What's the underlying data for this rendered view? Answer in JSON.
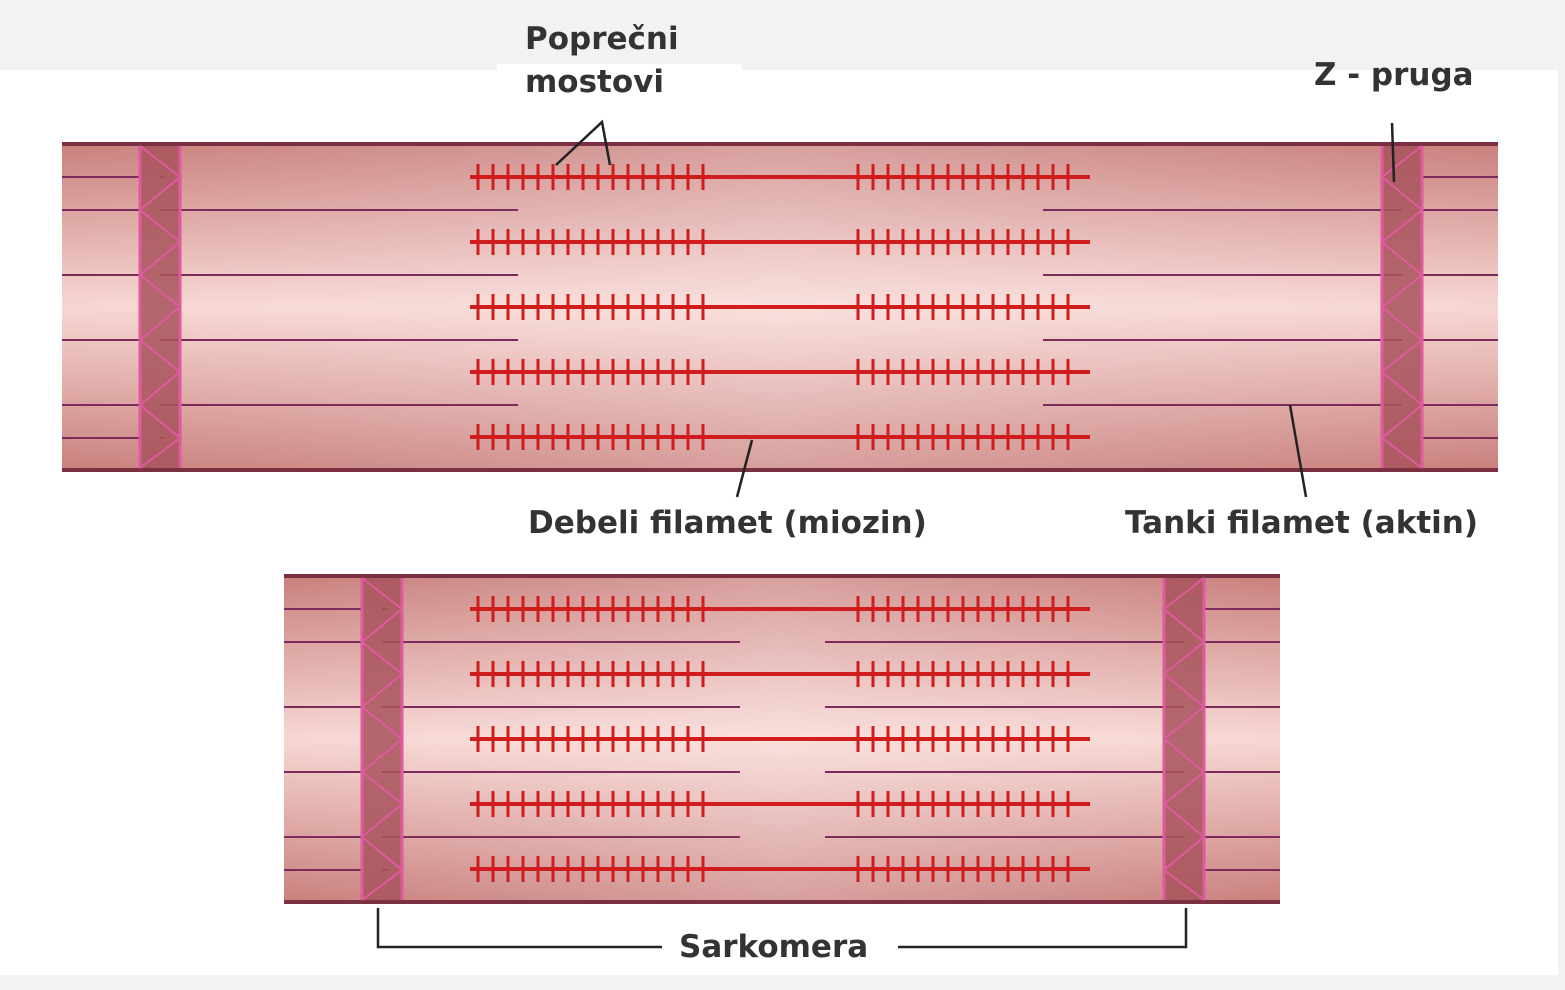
{
  "labels": {
    "cross_bridges_line1": "Poprečni",
    "cross_bridges_line2": "mostovi",
    "z_line": "Z - pruga",
    "thick_filament": "Debeli filamet (miozin)",
    "thin_filament": "Tanki filamet (aktin)",
    "sarcomere": "Sarkomera"
  },
  "panels": [
    {
      "state": "relaxed"
    },
    {
      "state": "contracted"
    }
  ],
  "colors": {
    "myofibril_edge": "#c97f7c",
    "myofibril_center": "#f7d7d3",
    "border": "#7a3040",
    "thick_filament": "#d01c1c",
    "thin_filament": "#7d2a5c",
    "z_disc_fill": "#a8525c",
    "z_disc_edge": "#e05aa0",
    "label_text": "#333333"
  }
}
